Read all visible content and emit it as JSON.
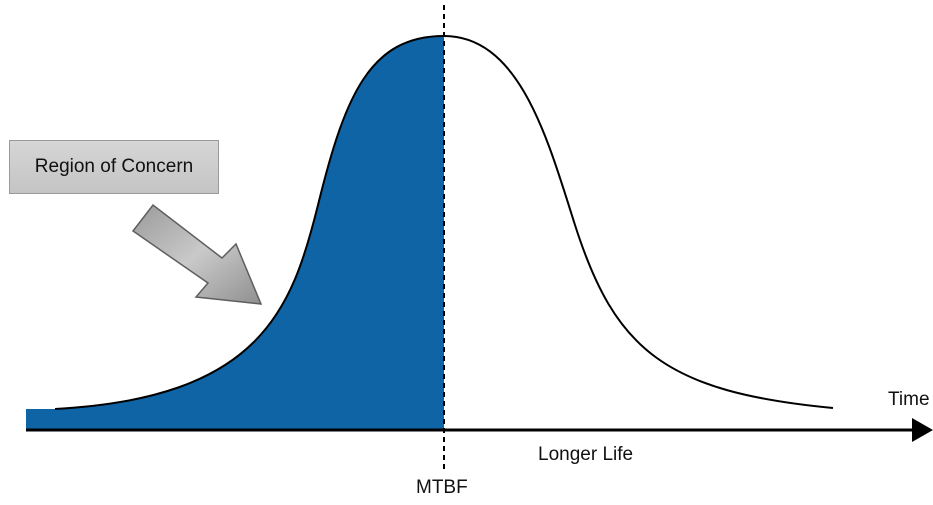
{
  "callout": {
    "text": "Region of Concern"
  },
  "axis": {
    "x_label": "Time"
  },
  "annotations": {
    "right_region": "Longer Life",
    "divider": "MTBF"
  },
  "colors": {
    "shaded_region": "#0f64a6",
    "arrow": "#a6a6a6",
    "callout_bg": "#cccccc",
    "line": "#000000"
  },
  "icons": {
    "arrow": "callout-arrow-icon"
  }
}
